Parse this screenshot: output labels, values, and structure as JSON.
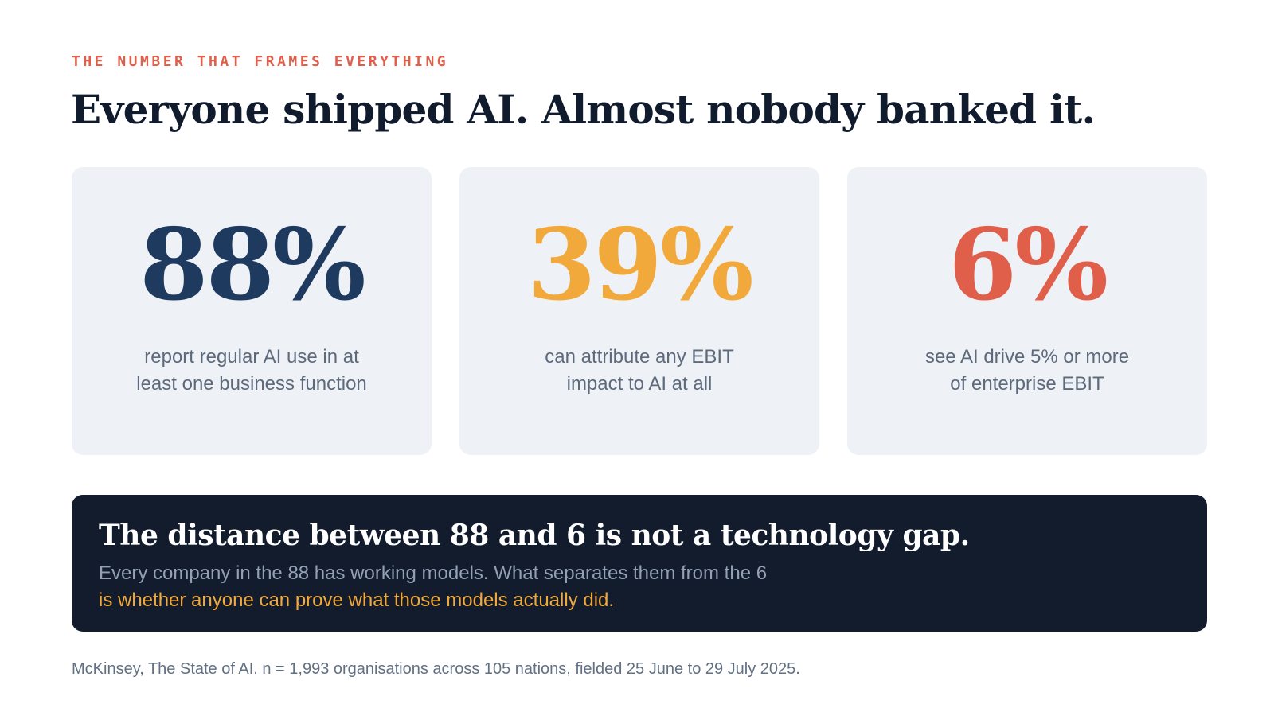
{
  "eyebrow": "THE NUMBER THAT FRAMES EVERYTHING",
  "title": "Everyone shipped AI. Almost nobody banked it.",
  "stats": [
    {
      "value": "88%",
      "desc_line1": "report regular AI use in at",
      "desc_line2": "least one business function",
      "color": "#1e3a5f"
    },
    {
      "value": "39%",
      "desc_line1": "can attribute any EBIT",
      "desc_line2": "impact to AI at all",
      "color": "#f2a93b"
    },
    {
      "value": "6%",
      "desc_line1": "see AI drive 5% or more",
      "desc_line2": "of enterprise EBIT",
      "color": "#e05f4b"
    }
  ],
  "callout": {
    "heading": "The distance between 88 and 6 is not a technology gap.",
    "line1": "Every company in the 88 has working models. What separates them from the 6",
    "line2_highlight": "is whether anyone can prove what those models actually did."
  },
  "source": "McKinsey, The State of AI. n = 1,993 organisations across 105 nations, fielded 25 June to 29 July 2025.",
  "colors": {
    "accent_red": "#e05f4b",
    "accent_amber": "#f2a93b",
    "navy": "#1e3a5f",
    "dark_panel": "#121c2d",
    "card_bg": "#eef1f6"
  }
}
